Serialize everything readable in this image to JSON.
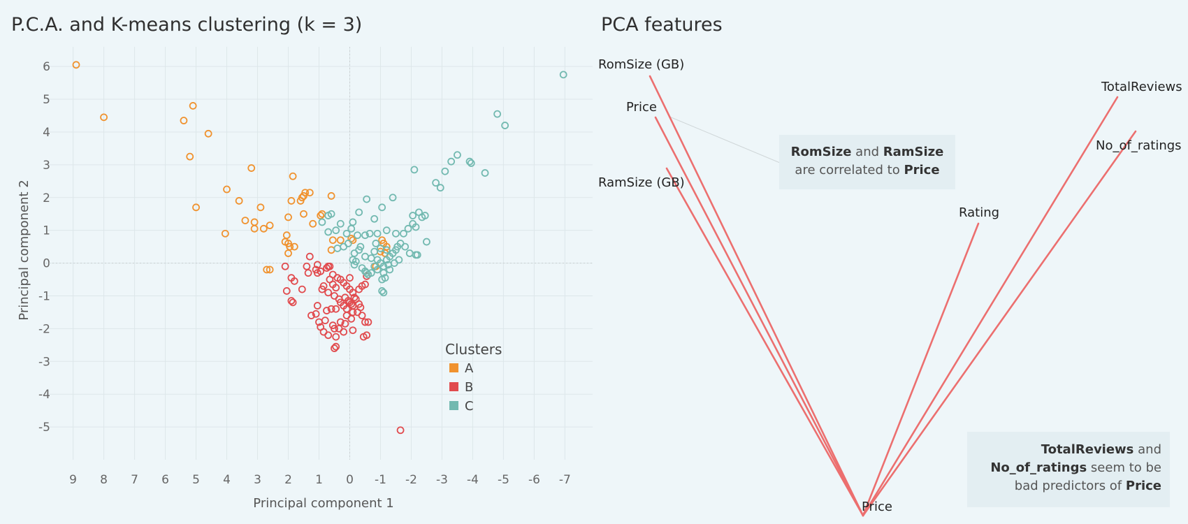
{
  "left_title": "P.C.A. and K-means clustering (k = 3)",
  "right_title": "PCA features",
  "chart_data": [
    {
      "type": "scatter",
      "title": "P.C.A. and K-means clustering (k = 3)",
      "xlabel": "Principal component 1",
      "ylabel": "Principal component 2",
      "x_reversed": true,
      "xlim": [
        9.9,
        -7.9
      ],
      "ylim": [
        -6,
        6.6
      ],
      "xticks": [
        9,
        8,
        7,
        6,
        5,
        4,
        3,
        2,
        1,
        0,
        -1,
        -2,
        -3,
        -4,
        -5,
        -6,
        -7
      ],
      "yticks": [
        6,
        5,
        4,
        3,
        2,
        1,
        0,
        -1,
        -2,
        -3,
        -4,
        -5
      ],
      "grid": true,
      "legend": {
        "title": "Clusters",
        "placement": "bottom-right"
      },
      "series": [
        {
          "name": "A",
          "color": "#f0922e",
          "points": [
            [
              8.9,
              6.05
            ],
            [
              8.0,
              4.45
            ],
            [
              5.1,
              4.8
            ],
            [
              5.4,
              4.35
            ],
            [
              4.6,
              3.95
            ],
            [
              5.2,
              3.25
            ],
            [
              5.0,
              1.7
            ],
            [
              3.2,
              2.9
            ],
            [
              4.0,
              2.25
            ],
            [
              3.6,
              1.9
            ],
            [
              3.4,
              1.3
            ],
            [
              3.1,
              1.25
            ],
            [
              3.1,
              1.05
            ],
            [
              2.9,
              1.7
            ],
            [
              2.8,
              1.05
            ],
            [
              2.6,
              1.15
            ],
            [
              4.05,
              0.9
            ],
            [
              2.0,
              1.4
            ],
            [
              1.9,
              1.9
            ],
            [
              1.85,
              2.65
            ],
            [
              1.5,
              2.05
            ],
            [
              1.45,
              2.15
            ],
            [
              1.3,
              2.15
            ],
            [
              1.55,
              2.0
            ],
            [
              1.6,
              1.9
            ],
            [
              1.5,
              1.5
            ],
            [
              1.2,
              1.2
            ],
            [
              0.9,
              1.5
            ],
            [
              0.6,
              2.05
            ],
            [
              0.95,
              1.45
            ],
            [
              2.05,
              0.85
            ],
            [
              2.1,
              0.65
            ],
            [
              2.0,
              0.6
            ],
            [
              1.95,
              0.5
            ],
            [
              1.8,
              0.5
            ],
            [
              2.0,
              0.3
            ],
            [
              2.7,
              -0.2
            ],
            [
              2.6,
              -0.2
            ],
            [
              0.55,
              0.7
            ],
            [
              0.3,
              0.7
            ],
            [
              -0.1,
              0.7
            ],
            [
              -0.05,
              0.75
            ],
            [
              -1.1,
              0.6
            ],
            [
              -1.05,
              0.7
            ],
            [
              -1.2,
              0.5
            ],
            [
              -1.0,
              0.35
            ],
            [
              -0.85,
              -0.1
            ],
            [
              -1.15,
              0.3
            ],
            [
              0.6,
              0.4
            ]
          ]
        },
        {
          "name": "B",
          "color": "#e14b4e",
          "points": [
            [
              -1.65,
              -5.1
            ],
            [
              1.3,
              0.2
            ],
            [
              2.1,
              -0.1
            ],
            [
              1.9,
              -0.45
            ],
            [
              1.8,
              -0.55
            ],
            [
              2.05,
              -0.85
            ],
            [
              1.55,
              -0.8
            ],
            [
              1.9,
              -1.15
            ],
            [
              1.85,
              -1.2
            ],
            [
              1.05,
              -0.3
            ],
            [
              1.1,
              -0.2
            ],
            [
              1.05,
              -0.05
            ],
            [
              0.95,
              -0.25
            ],
            [
              0.75,
              -0.15
            ],
            [
              0.7,
              -0.1
            ],
            [
              0.65,
              -0.1
            ],
            [
              0.55,
              -0.35
            ],
            [
              0.4,
              -0.45
            ],
            [
              0.3,
              -0.5
            ],
            [
              0.2,
              -0.6
            ],
            [
              0.1,
              -0.7
            ],
            [
              0.0,
              -0.8
            ],
            [
              -0.1,
              -0.9
            ],
            [
              -0.3,
              -0.8
            ],
            [
              -0.4,
              -0.7
            ],
            [
              -0.5,
              -0.65
            ],
            [
              -0.55,
              -0.4
            ],
            [
              0.85,
              -0.7
            ],
            [
              0.9,
              -0.8
            ],
            [
              0.7,
              -0.9
            ],
            [
              0.5,
              -1.0
            ],
            [
              0.35,
              -1.1
            ],
            [
              0.3,
              -1.2
            ],
            [
              0.2,
              -1.3
            ],
            [
              0.1,
              -1.4
            ],
            [
              0.0,
              -1.2
            ],
            [
              -0.1,
              -1.3
            ],
            [
              -0.2,
              -1.1
            ],
            [
              -0.3,
              -1.25
            ],
            [
              -0.35,
              -1.35
            ],
            [
              0.15,
              -1.05
            ],
            [
              0.05,
              -1.15
            ],
            [
              -0.05,
              -1.25
            ],
            [
              -0.15,
              -1.05
            ],
            [
              1.05,
              -1.3
            ],
            [
              1.1,
              -1.55
            ],
            [
              1.25,
              -1.6
            ],
            [
              1.0,
              -1.8
            ],
            [
              0.95,
              -1.95
            ],
            [
              0.85,
              -2.1
            ],
            [
              0.8,
              -1.75
            ],
            [
              0.7,
              -2.2
            ],
            [
              0.55,
              -1.9
            ],
            [
              0.5,
              -2.0
            ],
            [
              0.45,
              -2.25
            ],
            [
              0.35,
              -2.0
            ],
            [
              0.3,
              -1.8
            ],
            [
              0.15,
              -1.85
            ],
            [
              0.2,
              -2.1
            ],
            [
              -0.05,
              -1.7
            ],
            [
              -0.1,
              -2.05
            ],
            [
              -0.4,
              -1.6
            ],
            [
              -0.5,
              -1.8
            ],
            [
              -0.6,
              -1.8
            ],
            [
              -0.45,
              -2.25
            ],
            [
              -0.55,
              -2.2
            ],
            [
              0.45,
              -2.55
            ],
            [
              0.5,
              -2.6
            ],
            [
              0.75,
              -1.45
            ],
            [
              0.6,
              -1.4
            ],
            [
              0.45,
              -1.4
            ],
            [
              0.65,
              -0.5
            ],
            [
              0.55,
              -0.65
            ],
            [
              0.45,
              -0.75
            ],
            [
              0.0,
              -0.45
            ],
            [
              -0.25,
              -1.5
            ],
            [
              -0.1,
              -1.5
            ],
            [
              1.35,
              -0.3
            ],
            [
              1.4,
              -0.1
            ],
            [
              0.1,
              -1.6
            ]
          ]
        },
        {
          "name": "C",
          "color": "#72b9b0",
          "points": [
            [
              -6.95,
              5.75
            ],
            [
              -4.8,
              4.55
            ],
            [
              -5.05,
              4.2
            ],
            [
              -3.5,
              3.3
            ],
            [
              -3.3,
              3.1
            ],
            [
              -3.1,
              2.8
            ],
            [
              -3.9,
              3.1
            ],
            [
              -3.95,
              3.05
            ],
            [
              -4.4,
              2.75
            ],
            [
              -2.1,
              2.85
            ],
            [
              -2.8,
              2.45
            ],
            [
              -2.95,
              2.3
            ],
            [
              -1.4,
              2.0
            ],
            [
              -0.55,
              1.95
            ],
            [
              -1.05,
              1.7
            ],
            [
              -0.8,
              1.35
            ],
            [
              -0.3,
              1.55
            ],
            [
              0.6,
              1.5
            ],
            [
              0.7,
              1.45
            ],
            [
              0.3,
              1.2
            ],
            [
              0.45,
              1.0
            ],
            [
              0.7,
              0.95
            ],
            [
              0.9,
              1.25
            ],
            [
              -0.1,
              1.25
            ],
            [
              -0.05,
              1.05
            ],
            [
              0.1,
              0.9
            ],
            [
              -0.25,
              0.85
            ],
            [
              -0.5,
              0.85
            ],
            [
              -0.65,
              0.9
            ],
            [
              -0.9,
              0.9
            ],
            [
              -1.2,
              1.0
            ],
            [
              -1.5,
              0.9
            ],
            [
              -1.75,
              0.9
            ],
            [
              -1.9,
              1.05
            ],
            [
              -2.05,
              1.45
            ],
            [
              -2.05,
              1.2
            ],
            [
              -2.15,
              1.1
            ],
            [
              -2.25,
              1.55
            ],
            [
              -2.35,
              1.4
            ],
            [
              -2.45,
              1.45
            ],
            [
              -2.5,
              0.65
            ],
            [
              -1.95,
              0.3
            ],
            [
              -2.15,
              0.25
            ],
            [
              -2.2,
              0.25
            ],
            [
              -1.8,
              0.5
            ],
            [
              -1.55,
              0.5
            ],
            [
              -1.65,
              0.6
            ],
            [
              -0.3,
              0.4
            ],
            [
              -0.5,
              0.2
            ],
            [
              -0.7,
              0.15
            ],
            [
              -0.9,
              0.1
            ],
            [
              -1.0,
              0.0
            ],
            [
              -1.1,
              -0.1
            ],
            [
              -1.2,
              0.1
            ],
            [
              -1.3,
              0.2
            ],
            [
              -1.4,
              0.3
            ],
            [
              -1.5,
              0.4
            ],
            [
              -1.3,
              -0.2
            ],
            [
              -1.1,
              -0.3
            ],
            [
              -0.9,
              -0.2
            ],
            [
              -0.7,
              -0.3
            ],
            [
              -0.6,
              -0.35
            ],
            [
              -0.5,
              -0.25
            ],
            [
              -0.4,
              -0.15
            ],
            [
              -0.2,
              0.05
            ],
            [
              -0.1,
              0.1
            ],
            [
              -0.15,
              -0.05
            ],
            [
              -0.8,
              0.35
            ],
            [
              -1.0,
              0.45
            ],
            [
              -1.2,
              0.4
            ],
            [
              -1.05,
              -0.5
            ],
            [
              -1.15,
              -0.45
            ],
            [
              -1.1,
              -0.9
            ],
            [
              -1.05,
              -0.85
            ],
            [
              -0.55,
              -0.3
            ],
            [
              -0.8,
              -0.1
            ],
            [
              -1.25,
              -0.05
            ],
            [
              -1.45,
              0.0
            ],
            [
              -1.6,
              0.1
            ],
            [
              0.4,
              0.45
            ],
            [
              0.2,
              0.5
            ],
            [
              0.05,
              0.6
            ],
            [
              -0.35,
              0.5
            ],
            [
              -0.15,
              0.3
            ],
            [
              -0.85,
              0.6
            ]
          ]
        }
      ]
    },
    {
      "type": "biplot",
      "title": "PCA features",
      "origin_label": "Price",
      "vectors": [
        {
          "label": "RomSize (GB)"
        },
        {
          "label": "Price"
        },
        {
          "label": "RamSize (GB)"
        },
        {
          "label": "Rating"
        },
        {
          "label": "TotalReviews"
        },
        {
          "label": "No_of_ratings"
        }
      ],
      "color": "#ec6f6f"
    }
  ],
  "notes": [
    {
      "parts": [
        [
          "RomSize",
          true
        ],
        [
          " and ",
          false
        ],
        [
          "RamSize",
          true
        ],
        [
          " are correlated to ",
          false
        ],
        [
          "Price",
          true
        ]
      ]
    },
    {
      "parts": [
        [
          "TotalReviews",
          true
        ],
        [
          " and ",
          false
        ],
        [
          "No_of_ratings",
          true
        ],
        [
          " seem to be bad predictors of ",
          false
        ],
        [
          "Price",
          true
        ]
      ]
    }
  ]
}
